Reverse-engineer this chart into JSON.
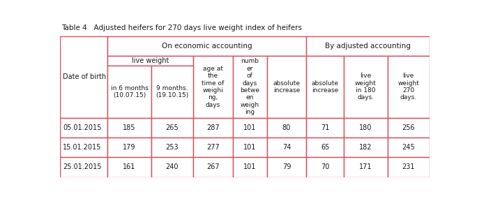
{
  "title": "Table 4   Adjusted heifers for 270 days live weight index of heifers",
  "headers": [
    "Date of birth",
    "in 6 months\n(10.07.15)",
    "9 months.\n(19.10.15)",
    "age at\nthe\ntime of\nweighi\nng,\ndays",
    "numb\ner\nof\ndays\nbetwe\nen\nweigh\ning",
    "absolute\nincrease",
    "absolute\nincrease",
    "live\nweight\nin 180\ndays.",
    "live\nweight\n270\ndays."
  ],
  "rows": [
    [
      "05.01.2015",
      "185",
      "265",
      "287",
      "101",
      "80",
      "71",
      "180",
      "256"
    ],
    [
      "15.01.2015",
      "179",
      "253",
      "277",
      "101",
      "74",
      "65",
      "182",
      "245"
    ],
    [
      "25.01.2015",
      "161",
      "240",
      "267",
      "101",
      "79",
      "70",
      "171",
      "231"
    ]
  ],
  "col_widths_raw": [
    1.15,
    1.05,
    1.0,
    0.95,
    0.82,
    0.95,
    0.9,
    1.05,
    1.0
  ],
  "border_color": "#d94f5c",
  "text_color": "#1a1a1a",
  "bg_color": "#ffffff",
  "font_size": 7.0,
  "title_font_size": 7.5
}
